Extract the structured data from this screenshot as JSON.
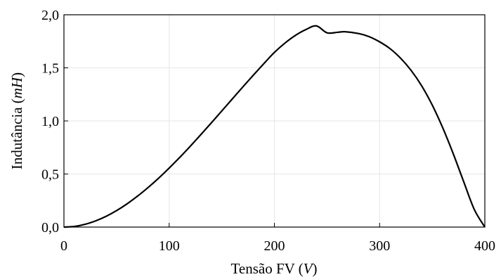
{
  "chart_data": {
    "type": "line",
    "title": "",
    "xlabel": {
      "prefix": "Tensão FV (",
      "unit": "V",
      "suffix": ")"
    },
    "ylabel": {
      "prefix": "Indutância (",
      "unit": "mH",
      "suffix": ")"
    },
    "xlim": [
      0,
      400
    ],
    "ylim": [
      0,
      2.0
    ],
    "grid": true,
    "x_ticks": [
      {
        "value": 0,
        "label": "0"
      },
      {
        "value": 100,
        "label": "100"
      },
      {
        "value": 200,
        "label": "200"
      },
      {
        "value": 300,
        "label": "300"
      },
      {
        "value": 400,
        "label": "400"
      }
    ],
    "y_ticks": [
      {
        "value": 0,
        "label": "0,0"
      },
      {
        "value": 0.5,
        "label": "0,5"
      },
      {
        "value": 1.0,
        "label": "1,0"
      },
      {
        "value": 1.5,
        "label": "1,5"
      },
      {
        "value": 2.0,
        "label": "2,0"
      }
    ],
    "series": [
      {
        "color": "#000000",
        "x": [
          0,
          10,
          20,
          30,
          40,
          50,
          60,
          70,
          80,
          90,
          100,
          110,
          120,
          130,
          140,
          150,
          160,
          170,
          180,
          190,
          200,
          210,
          220,
          230,
          240,
          250,
          260,
          267,
          280,
          290,
          300,
          310,
          320,
          330,
          340,
          350,
          360,
          370,
          380,
          390,
          400
        ],
        "y": [
          0,
          0.006,
          0.026,
          0.058,
          0.101,
          0.155,
          0.219,
          0.292,
          0.373,
          0.461,
          0.556,
          0.656,
          0.761,
          0.87,
          0.981,
          1.094,
          1.207,
          1.32,
          1.431,
          1.54,
          1.645,
          1.733,
          1.806,
          1.861,
          1.895,
          1.83,
          1.835,
          1.84,
          1.823,
          1.794,
          1.745,
          1.68,
          1.59,
          1.475,
          1.33,
          1.15,
          0.935,
          0.69,
          0.425,
          0.165,
          0.0
        ]
      }
    ]
  }
}
